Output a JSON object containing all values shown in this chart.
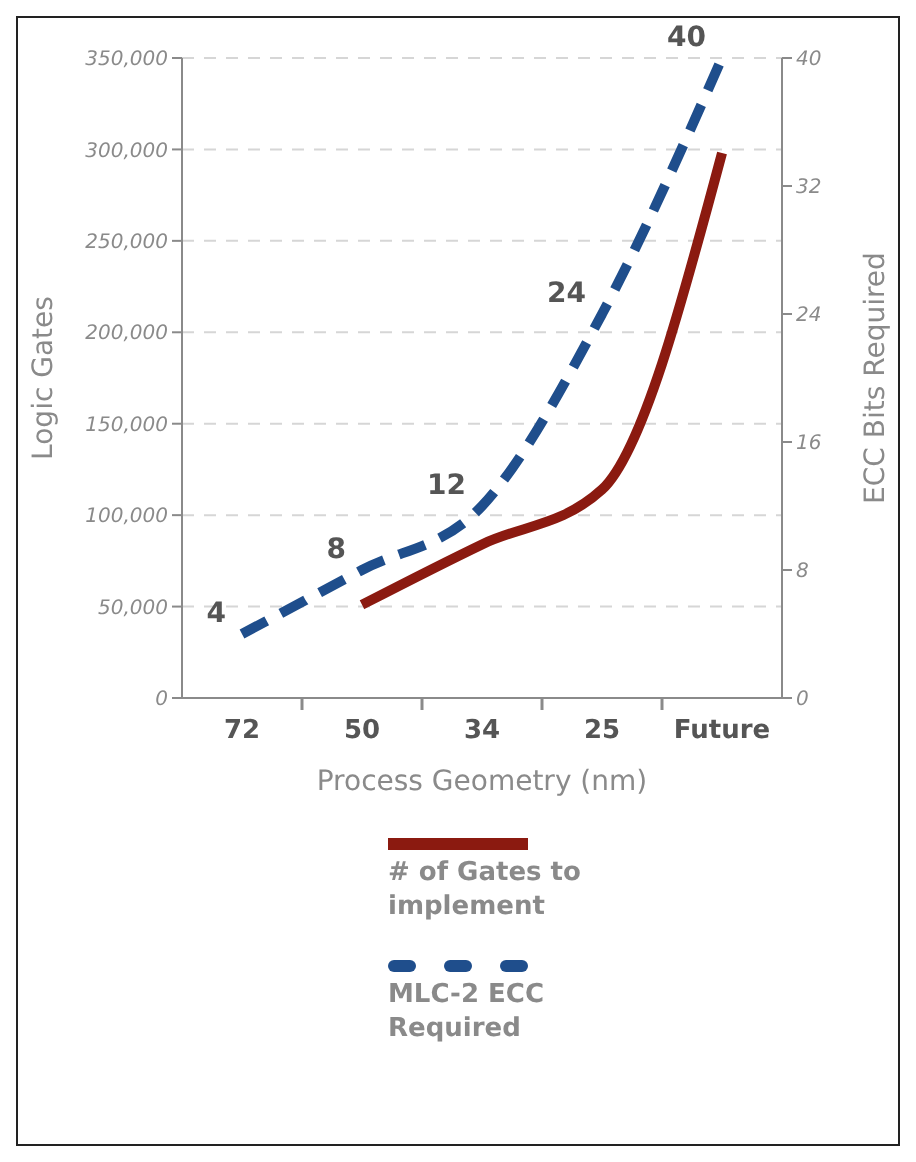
{
  "chart_data": {
    "type": "line",
    "xlabel": "Process Geometry (nm)",
    "ylabel": "Logic Gates",
    "y2label": "ECC Bits Required",
    "categories": [
      "72",
      "50",
      "34",
      "25",
      "Future"
    ],
    "ylim": [
      0,
      350000
    ],
    "yticks": [
      {
        "value": 0,
        "label": "0"
      },
      {
        "value": 50000,
        "label": "50,000"
      },
      {
        "value": 100000,
        "label": "100,000"
      },
      {
        "value": 150000,
        "label": "150,000"
      },
      {
        "value": 200000,
        "label": "200,000"
      },
      {
        "value": 250000,
        "label": "250,000"
      },
      {
        "value": 300000,
        "label": "300,000"
      },
      {
        "value": 350000,
        "label": "350,000"
      }
    ],
    "y2lim": [
      0,
      40
    ],
    "y2ticks": [
      0,
      8,
      16,
      24,
      32,
      40
    ],
    "grid": "y",
    "legend": "bottom",
    "marker": "none",
    "series": [
      {
        "name": "# of Gates to implement",
        "color": "#8b1a10",
        "line_style": "solid",
        "values": [
          null,
          51000,
          84000,
          114000,
          298000
        ]
      },
      {
        "name": "MLC-2 ECC Required",
        "color": "#1f4e8c",
        "line_style": "dashed",
        "axis": "y2",
        "values": [
          4,
          8,
          12,
          24,
          40
        ],
        "value_labels": [
          "4",
          "8",
          "12",
          "24",
          "40"
        ]
      }
    ]
  }
}
